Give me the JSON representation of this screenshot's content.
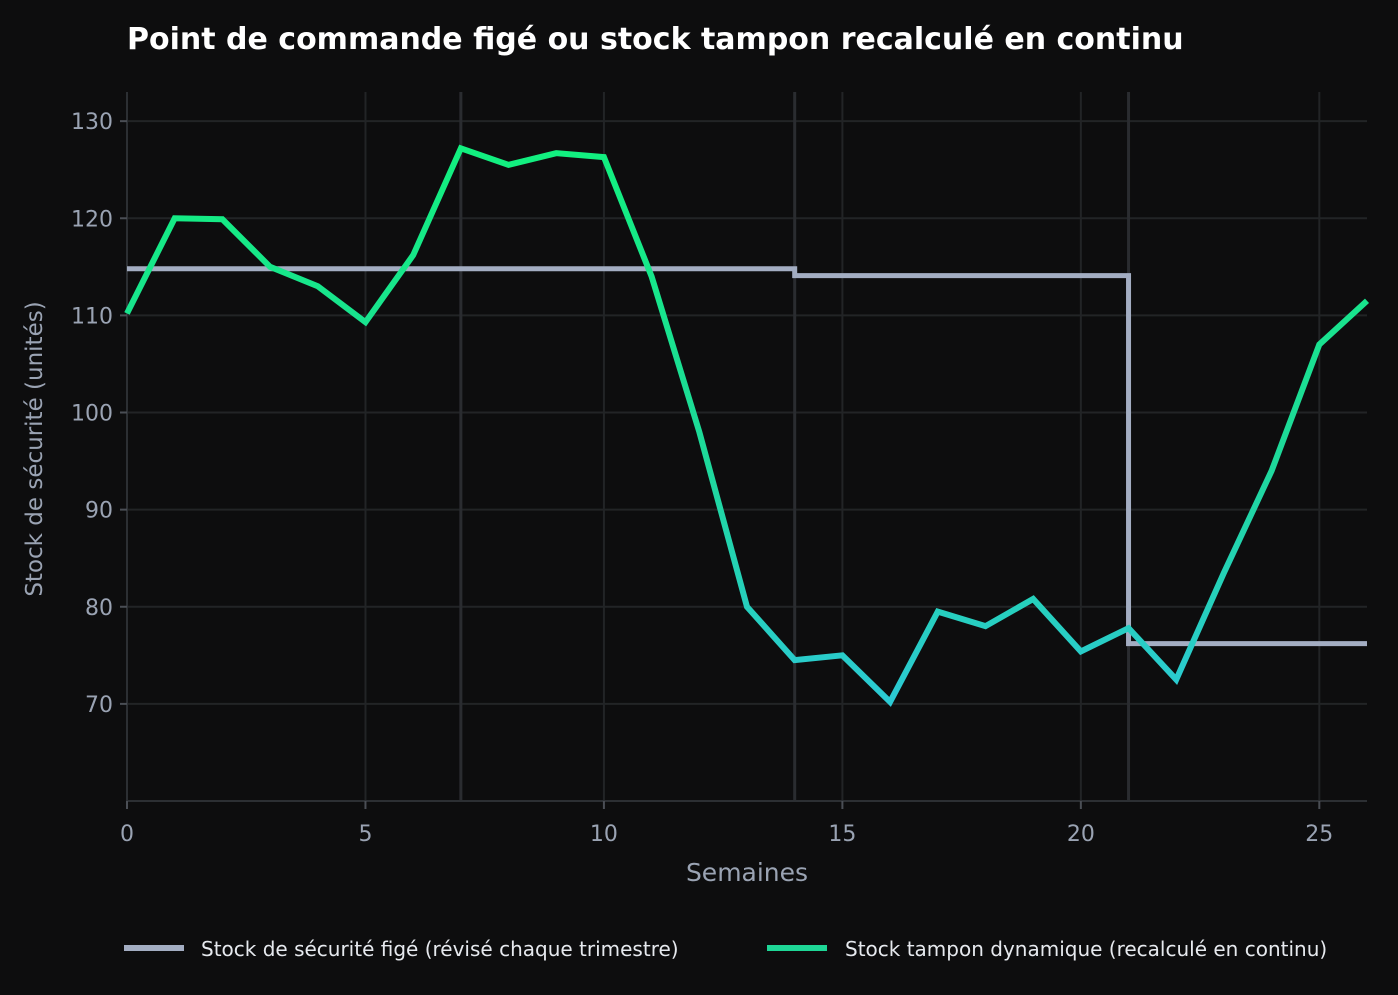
{
  "chart_data": {
    "type": "line",
    "title": "Point de commande figé ou stock tampon recalculé en continu",
    "xlabel": "Semaines",
    "ylabel": "Stock de sécurité (unités)",
    "xlim": [
      0,
      26
    ],
    "ylim": [
      60,
      133
    ],
    "xticks": [
      0,
      5,
      10,
      15,
      20,
      25
    ],
    "yticks": [
      70,
      80,
      90,
      100,
      110,
      120,
      130
    ],
    "grid": true,
    "legend": "bottom",
    "review_weeks": [
      7,
      14,
      21
    ],
    "series": [
      {
        "name": "Stock de sécurité figé (révisé chaque trimestre)",
        "color": "#a3adc2",
        "step": "post",
        "x": [
          0,
          14,
          21,
          26
        ],
        "y": [
          114.8,
          114.1,
          76.2,
          76.2
        ]
      },
      {
        "name": "Stock tampon dynamique (recalculé en continu)",
        "color": "#1ed696",
        "gradient": {
          "high": "#12f07f",
          "low": "#2cc9d6"
        },
        "x": [
          0,
          1,
          2,
          3,
          4,
          5,
          6,
          7,
          8,
          9,
          10,
          11,
          12,
          13,
          14,
          15,
          16,
          17,
          18,
          19,
          20,
          21,
          22,
          23,
          24,
          25,
          26
        ],
        "y": [
          110.2,
          120.0,
          119.9,
          115.0,
          113.0,
          109.3,
          116.2,
          127.2,
          125.5,
          126.7,
          126.3,
          114.0,
          98.0,
          80.0,
          74.5,
          75.0,
          70.2,
          79.5,
          78.0,
          80.8,
          75.4,
          77.8,
          72.5,
          83.5,
          94.0,
          107.0,
          111.5
        ]
      }
    ]
  }
}
